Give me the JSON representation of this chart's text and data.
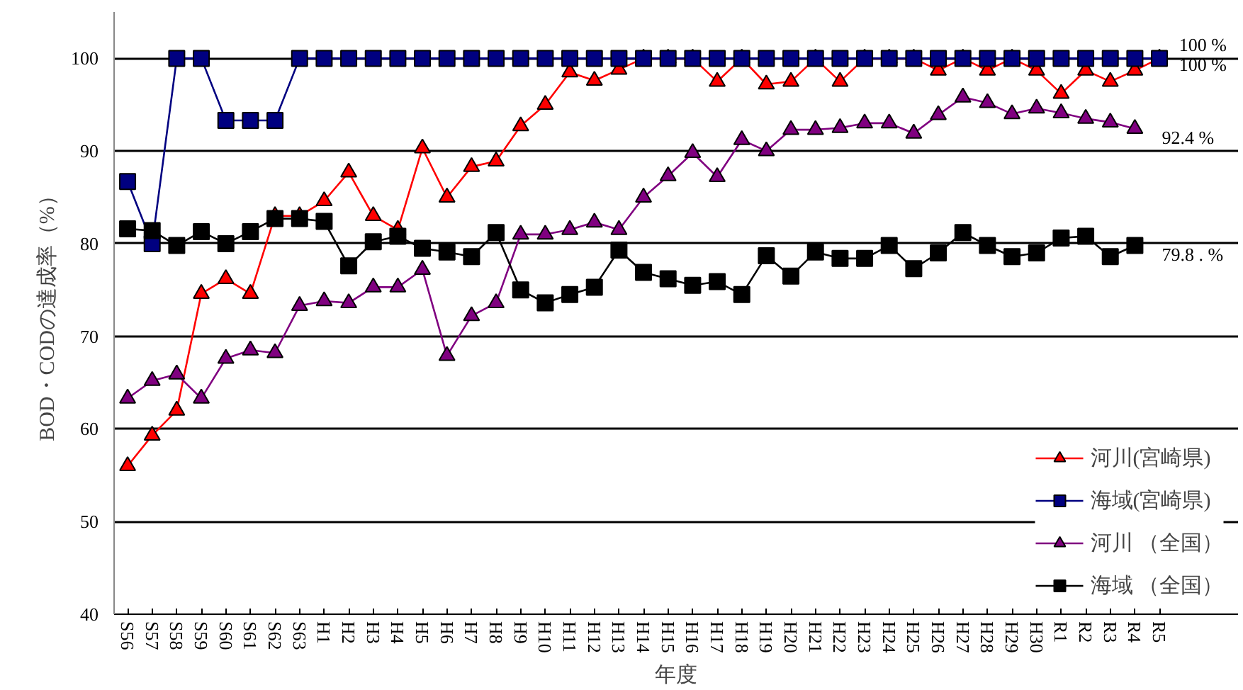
{
  "chart_data": {
    "type": "line",
    "xlabel": "年度",
    "ylabel": "BOD・CODの達成率（%）",
    "categories": [
      "S56",
      "S57",
      "S58",
      "S59",
      "S60",
      "S61",
      "S62",
      "S63",
      "H1",
      "H2",
      "H3",
      "H4",
      "H5",
      "H6",
      "H7",
      "H8",
      "H9",
      "H10",
      "H11",
      "H12",
      "H13",
      "H14",
      "H15",
      "H16",
      "H17",
      "H18",
      "H19",
      "H20",
      "H21",
      "H22",
      "H23",
      "H24",
      "H25",
      "H26",
      "H27",
      "H28",
      "H29",
      "H30",
      "R1",
      "R2",
      "R3",
      "R4",
      "R5"
    ],
    "series": [
      {
        "name": "河川(宮崎県)",
        "color": "#ff0000",
        "marker": "triangle",
        "values": [
          56,
          59.3,
          62,
          74.6,
          76.2,
          74.6,
          83,
          83,
          84.6,
          87.7,
          83,
          81.5,
          90.3,
          85,
          88.3,
          88.9,
          92.7,
          95.0,
          98.5,
          97.6,
          98.8,
          100,
          100,
          100,
          97.5,
          100,
          97.2,
          97.5,
          100,
          97.5,
          100,
          100,
          100,
          98.7,
          100,
          98.7,
          100,
          98.7,
          96.2,
          98.7,
          97.5,
          98.7,
          100
        ]
      },
      {
        "name": "海域(宮崎県)",
        "color": "#000080",
        "marker": "square",
        "values": [
          86.7,
          80,
          100,
          100,
          93.3,
          93.3,
          93.3,
          100,
          100,
          100,
          100,
          100,
          100,
          100,
          100,
          100,
          100,
          100,
          100,
          100,
          100,
          100,
          100,
          100,
          100,
          100,
          100,
          100,
          100,
          100,
          100,
          100,
          100,
          100,
          100,
          100,
          100,
          100,
          100,
          100,
          100,
          100,
          100
        ]
      },
      {
        "name": "河川 （全国）",
        "color": "#800080",
        "marker": "triangle",
        "values": [
          63.3,
          65.2,
          65.9,
          63.3,
          67.6,
          68.5,
          68.2,
          73.3,
          73.8,
          73.6,
          75.3,
          75.3,
          77.2,
          67.9,
          72.2,
          73.6,
          81.0,
          81.0,
          81.5,
          82.3,
          81.5,
          85.0,
          87.3,
          89.8,
          87.2,
          91.2,
          90.0,
          92.3,
          92.3,
          92.5,
          93.0,
          93.0,
          91.9,
          93.9,
          95.8,
          95.2,
          94.0,
          94.6,
          94.1,
          93.5,
          93.1,
          92.4,
          null
        ]
      },
      {
        "name": "海域 （全国）",
        "color": "#000000",
        "marker": "square",
        "values": [
          81.6,
          81.4,
          79.8,
          81.3,
          80.0,
          81.3,
          82.7,
          82.7,
          82.4,
          77.6,
          80.2,
          80.8,
          79.5,
          79.1,
          78.6,
          81.2,
          75.0,
          73.6,
          74.5,
          75.3,
          79.3,
          76.9,
          76.2,
          75.5,
          75.9,
          74.5,
          78.7,
          76.5,
          79.1,
          78.4,
          78.4,
          79.8,
          77.3,
          79.0,
          81.2,
          79.8,
          78.6,
          79.0,
          80.6,
          80.8,
          78.6,
          79.8,
          null
        ]
      }
    ],
    "ylim": [
      40,
      105
    ],
    "yticks": [
      40,
      50,
      60,
      70,
      80,
      90,
      100
    ],
    "grid": "y",
    "legend": "bottom right",
    "annotations": [
      {
        "text": "100 %",
        "x": "R5",
        "y": 100
      },
      {
        "text": "100 %",
        "x": "R5",
        "y": 100
      },
      {
        "text": "92.4 %",
        "x": "R4",
        "y": 92.4
      },
      {
        "text": "79.8 . %",
        "x": "R4",
        "y": 79.8
      }
    ]
  }
}
